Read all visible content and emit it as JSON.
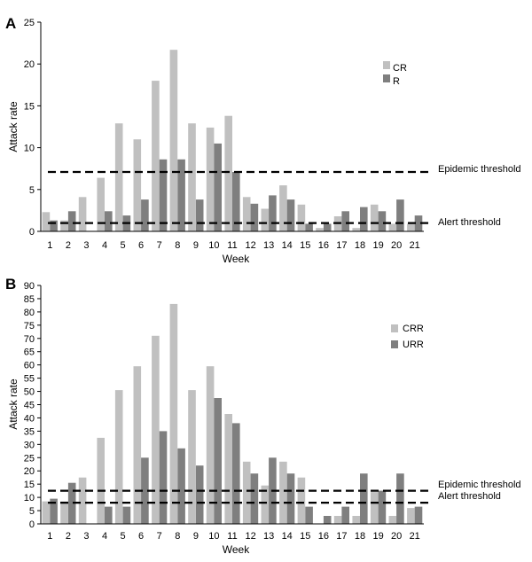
{
  "colors": {
    "light": "#c0c0c0",
    "dark": "#7f7f7f",
    "axis": "#000000"
  },
  "chart_data": [
    {
      "type": "bar",
      "panel_label": "A",
      "xlabel": "Week",
      "ylabel": "Attack rate",
      "ylim": [
        0,
        25
      ],
      "ytick_step": 5,
      "grid": false,
      "legend_position": "top-right",
      "categories": [
        "1",
        "2",
        "3",
        "4",
        "5",
        "6",
        "7",
        "8",
        "9",
        "10",
        "11",
        "12",
        "13",
        "14",
        "15",
        "16",
        "17",
        "18",
        "19",
        "20",
        "21"
      ],
      "series": [
        {
          "name": "CR",
          "color_key": "light",
          "values": [
            2.3,
            1.3,
            4.1,
            6.4,
            12.9,
            11.0,
            18.0,
            21.7,
            12.9,
            12.4,
            13.8,
            4.1,
            2.7,
            5.5,
            3.2,
            0.4,
            1.8,
            0.4,
            3.2,
            0.9,
            0.9
          ]
        },
        {
          "name": "R",
          "color_key": "dark",
          "values": [
            1.3,
            2.4,
            0,
            2.4,
            1.9,
            3.8,
            8.6,
            8.6,
            3.8,
            10.5,
            7.1,
            3.3,
            4.3,
            3.8,
            0.9,
            0.9,
            2.4,
            2.9,
            2.4,
            3.8,
            1.9
          ]
        }
      ],
      "thresholds": [
        {
          "label": "Epidemic threshold",
          "value": 7.1
        },
        {
          "label": "Alert threshold",
          "value": 1.0
        }
      ]
    },
    {
      "type": "bar",
      "panel_label": "B",
      "xlabel": "Week",
      "ylabel": "Attack rate",
      "ylim": [
        0,
        90
      ],
      "ytick_step": 5,
      "grid": false,
      "legend_position": "top-right",
      "categories": [
        "1",
        "2",
        "3",
        "4",
        "5",
        "6",
        "7",
        "8",
        "9",
        "10",
        "11",
        "12",
        "13",
        "14",
        "15",
        "16",
        "17",
        "18",
        "19",
        "20",
        "21"
      ],
      "series": [
        {
          "name": "CRR",
          "color_key": "light",
          "values": [
            8.5,
            8.5,
            17.5,
            32.5,
            50.5,
            59.5,
            71,
            83,
            50.5,
            59.5,
            41.5,
            23.5,
            14.5,
            23.5,
            17.5,
            0,
            3,
            3,
            12,
            3,
            6
          ]
        },
        {
          "name": "URR",
          "color_key": "dark",
          "values": [
            9.5,
            15.5,
            0,
            6.5,
            6.5,
            25,
            35,
            28.5,
            22,
            47.5,
            38,
            19,
            25,
            19,
            6.5,
            3,
            6.5,
            19,
            12.5,
            19,
            6.5
          ]
        }
      ],
      "thresholds": [
        {
          "label": "Epidemic threshold",
          "value": 12.5
        },
        {
          "label": "Alert threshold",
          "value": 8.0
        }
      ]
    }
  ]
}
